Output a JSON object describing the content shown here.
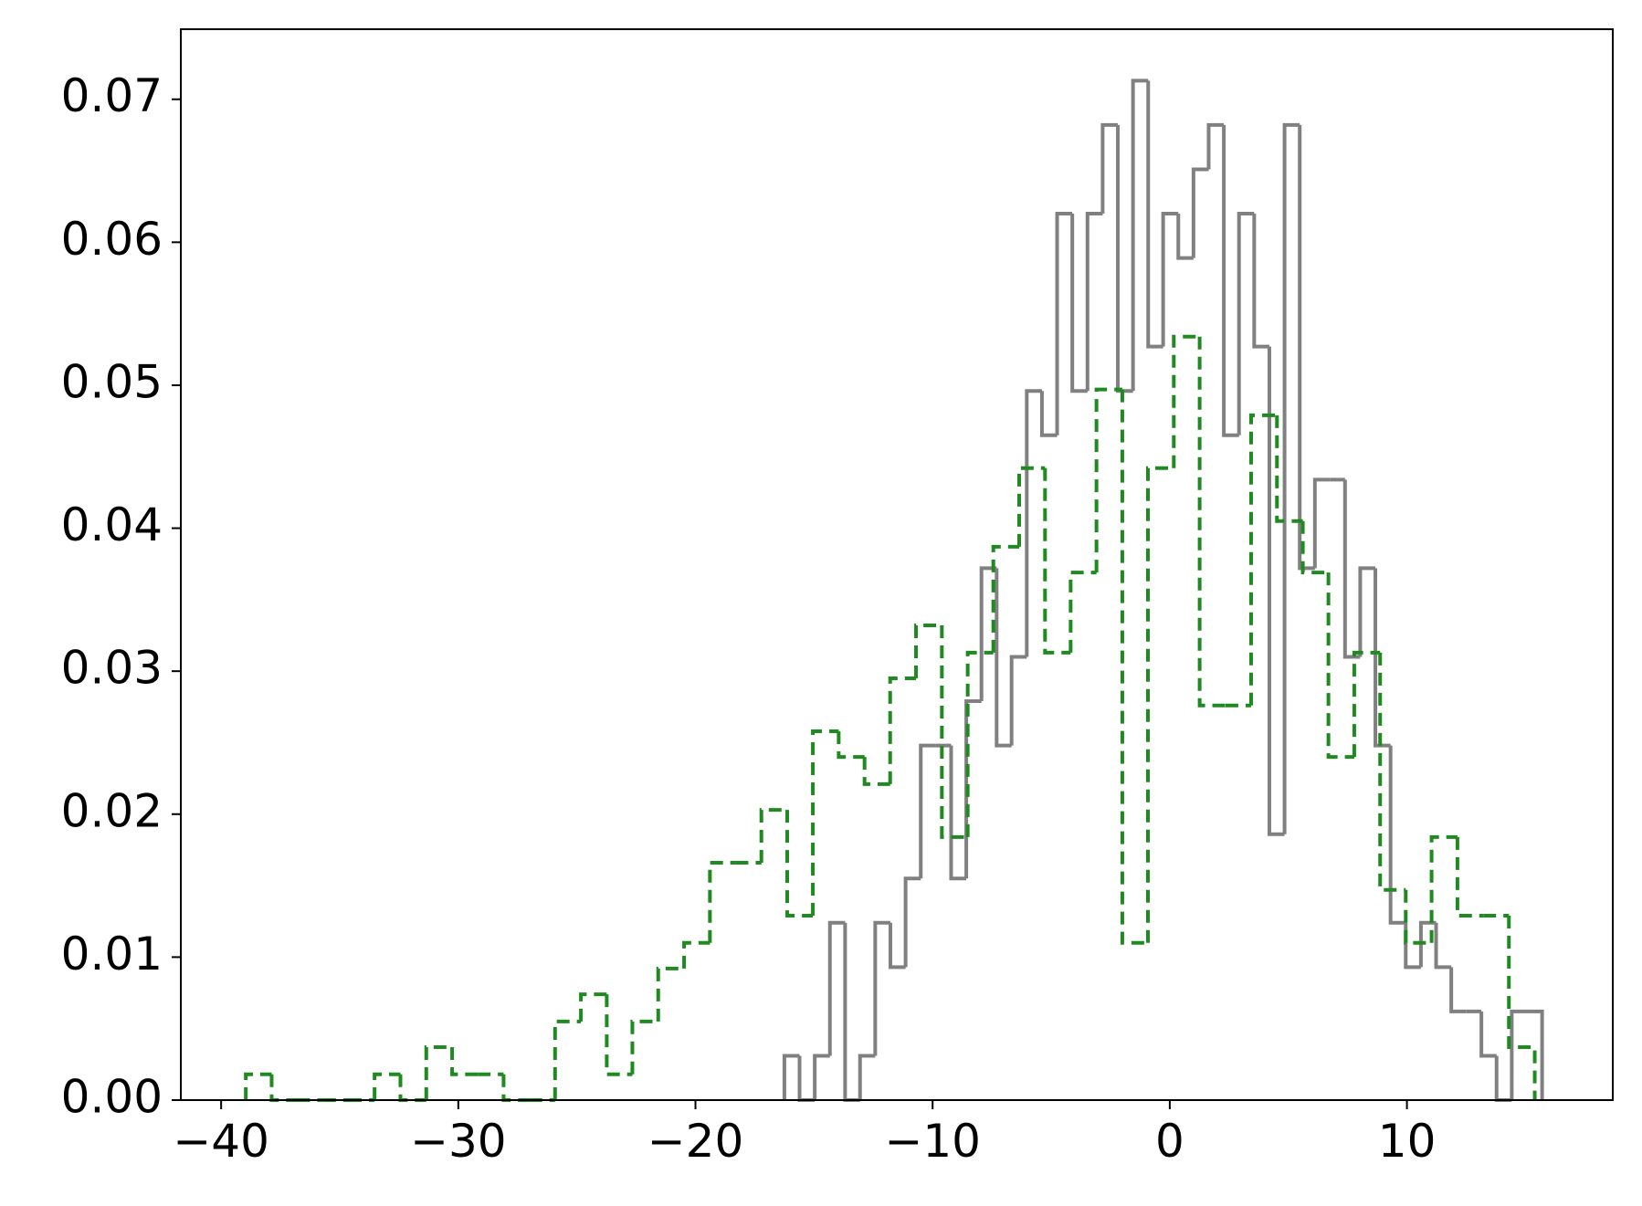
{
  "chart_data": {
    "type": "histogram",
    "xlim": [
      -41.7,
      18.68
    ],
    "ylim": [
      0,
      0.0749
    ],
    "xticks": [
      {
        "value": -40,
        "label": "−40"
      },
      {
        "value": -30,
        "label": "−30"
      },
      {
        "value": -20,
        "label": "−20"
      },
      {
        "value": -10,
        "label": "−10"
      },
      0,
      10
    ],
    "yticks": [
      {
        "value": 0,
        "label": "0.00"
      },
      0.01,
      0.02,
      0.03,
      0.04,
      0.05,
      0.06,
      0.07
    ],
    "grid": false,
    "series": [
      {
        "color": "#808080",
        "linestyle": "solid",
        "bins": [
          -16.25,
          -15.61,
          -14.97,
          -14.33,
          -13.69,
          -13.06,
          -12.42,
          -11.78,
          -11.14,
          -10.5,
          -9.86,
          -9.22,
          -8.58,
          -7.94,
          -7.3,
          -6.67,
          -6.03,
          -5.39,
          -4.75,
          -4.11,
          -3.47,
          -2.83,
          -2.19,
          -1.55,
          -0.91,
          -0.28,
          0.36,
          1.0,
          1.64,
          2.28,
          2.92,
          3.56,
          4.2,
          4.84,
          5.48,
          6.12,
          6.75,
          7.39,
          8.03,
          8.67,
          9.31,
          9.95,
          10.59,
          11.23,
          11.87,
          12.51,
          13.14,
          13.78,
          14.42,
          15.06,
          15.7
        ],
        "values": [
          0.0031,
          0,
          0.0031,
          0.0124,
          0,
          0.0031,
          0.0124,
          0.0093,
          0.0155,
          0.0248,
          0.0248,
          0.0155,
          0.0279,
          0.0372,
          0.0248,
          0.031,
          0.0496,
          0.0465,
          0.062,
          0.0496,
          0.062,
          0.0682,
          0.0496,
          0.0713,
          0.0527,
          0.062,
          0.0589,
          0.0651,
          0.0682,
          0.0465,
          0.062,
          0.0527,
          0.0186,
          0.0682,
          0.0372,
          0.0434,
          0.0434,
          0.031,
          0.0372,
          0.0248,
          0.0124,
          0.0093,
          0.0124,
          0.0093,
          0.0062,
          0.0062,
          0.0031,
          0,
          0.0062,
          0.0062
        ]
      },
      {
        "color": "#1f8a1f",
        "linestyle": "dashed",
        "bins": [
          -38.96,
          -37.87,
          -36.79,
          -35.7,
          -34.61,
          -33.53,
          -32.44,
          -31.35,
          -30.26,
          -29.18,
          -28.09,
          -27.0,
          -25.92,
          -24.83,
          -23.74,
          -22.66,
          -21.57,
          -20.48,
          -19.39,
          -18.31,
          -17.22,
          -16.13,
          -15.05,
          -13.96,
          -12.87,
          -11.79,
          -10.7,
          -9.61,
          -8.52,
          -7.44,
          -6.35,
          -5.26,
          -4.18,
          -3.09,
          -2.0,
          -0.92,
          0.17,
          1.26,
          2.35,
          3.43,
          4.52,
          5.61,
          6.69,
          7.78,
          8.87,
          9.95,
          11.04,
          12.13,
          13.22,
          14.3,
          15.39
        ],
        "values": [
          0.0018,
          0,
          0,
          0,
          0,
          0.0018,
          0,
          0.0037,
          0.0018,
          0.0018,
          0,
          0,
          0.0055,
          0.0074,
          0.0018,
          0.0055,
          0.0092,
          0.011,
          0.0166,
          0.0166,
          0.0203,
          0.0129,
          0.0258,
          0.024,
          0.0221,
          0.0295,
          0.0332,
          0.0184,
          0.0313,
          0.0387,
          0.0442,
          0.0313,
          0.0369,
          0.0497,
          0.011,
          0.0442,
          0.0534,
          0.0276,
          0.0276,
          0.0479,
          0.0405,
          0.0369,
          0.024,
          0.0313,
          0.0147,
          0.011,
          0.0184,
          0.0129,
          0.0129,
          0.0037
        ]
      }
    ]
  }
}
